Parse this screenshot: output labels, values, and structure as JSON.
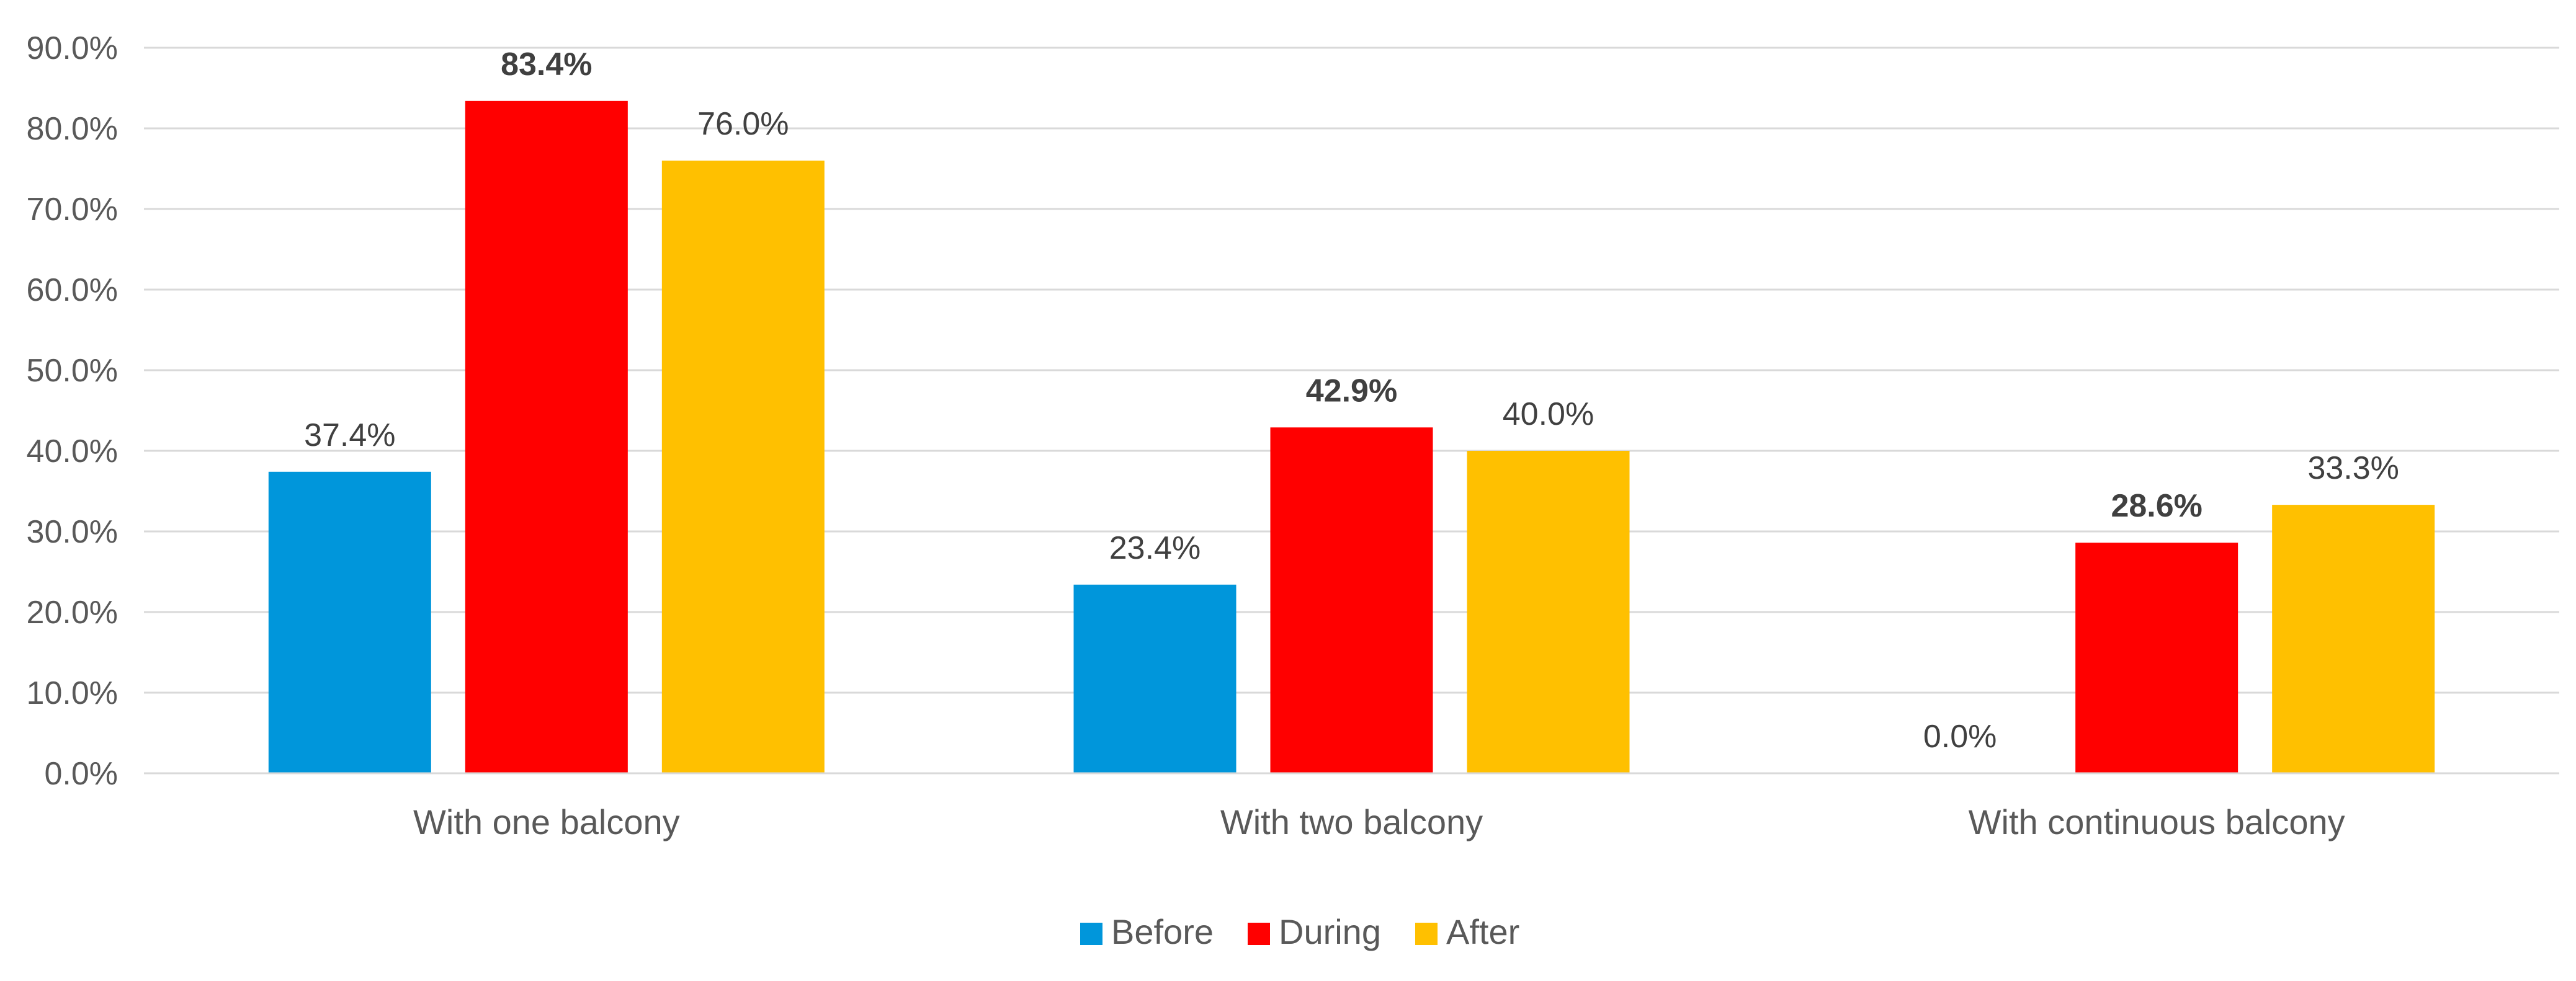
{
  "chart_data": {
    "type": "bar",
    "title": "",
    "xlabel": "",
    "ylabel": "",
    "categories": [
      "With one balcony",
      "With two balcony",
      "With continuous balcony"
    ],
    "series": [
      {
        "name": "Before",
        "color": "#0096DB",
        "values": [
          37.4,
          23.4,
          0.0
        ],
        "labels": [
          "37.4%",
          "23.4%",
          "0.0%"
        ],
        "label_bold": false
      },
      {
        "name": "During",
        "color": "#FF0000",
        "values": [
          83.4,
          42.9,
          28.6
        ],
        "labels": [
          "83.4%",
          "42.9%",
          "28.6%"
        ],
        "label_bold": true
      },
      {
        "name": "After",
        "color": "#FFC000",
        "values": [
          76.0,
          40.0,
          33.3
        ],
        "labels": [
          "76.0%",
          "40.0%",
          "33.3%"
        ],
        "label_bold": false
      }
    ],
    "ylim": [
      0,
      90
    ],
    "yticks": [
      0,
      10,
      20,
      30,
      40,
      50,
      60,
      70,
      80,
      90
    ],
    "ytick_labels": [
      "0.0%",
      "10.0%",
      "20.0%",
      "30.0%",
      "40.0%",
      "50.0%",
      "60.0%",
      "70.0%",
      "80.0%",
      "90.0%"
    ],
    "grid": true,
    "legend_position": "bottom-center"
  }
}
